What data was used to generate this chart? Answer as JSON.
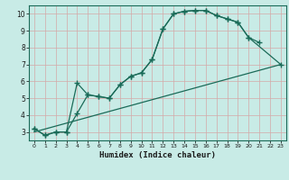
{
  "xlabel": "Humidex (Indice chaleur)",
  "bg_color": "#c8ebe6",
  "grid_color": "#d4a8a8",
  "line_color": "#1a6b58",
  "xlim": [
    -0.5,
    23.5
  ],
  "ylim": [
    2.5,
    10.5
  ],
  "xticks": [
    0,
    1,
    2,
    3,
    4,
    5,
    6,
    7,
    8,
    9,
    10,
    11,
    12,
    13,
    14,
    15,
    16,
    17,
    18,
    19,
    20,
    21,
    22,
    23
  ],
  "yticks": [
    3,
    4,
    5,
    6,
    7,
    8,
    9,
    10
  ],
  "curve1_x": [
    0,
    1,
    2,
    3,
    4,
    5,
    6,
    7,
    8,
    9,
    10,
    11,
    12,
    13,
    14,
    15,
    16,
    17,
    18,
    19,
    20,
    21
  ],
  "curve1_y": [
    3.2,
    2.8,
    3.0,
    3.0,
    5.9,
    5.2,
    5.1,
    5.0,
    5.8,
    6.3,
    6.5,
    7.3,
    9.1,
    10.0,
    10.15,
    10.2,
    10.2,
    9.9,
    9.7,
    9.5,
    8.6,
    8.3
  ],
  "curve2_x": [
    0,
    1,
    2,
    3,
    4,
    5,
    6,
    7,
    8,
    9,
    10,
    11,
    12,
    13,
    14,
    15,
    16,
    17,
    18,
    19,
    20,
    23
  ],
  "curve2_y": [
    3.2,
    2.8,
    3.0,
    3.0,
    4.1,
    5.2,
    5.1,
    5.0,
    5.8,
    6.3,
    6.5,
    7.3,
    9.1,
    10.0,
    10.15,
    10.2,
    10.2,
    9.9,
    9.7,
    9.5,
    8.6,
    7.0
  ],
  "trend_x": [
    0,
    23
  ],
  "trend_y": [
    3.0,
    7.0
  ]
}
